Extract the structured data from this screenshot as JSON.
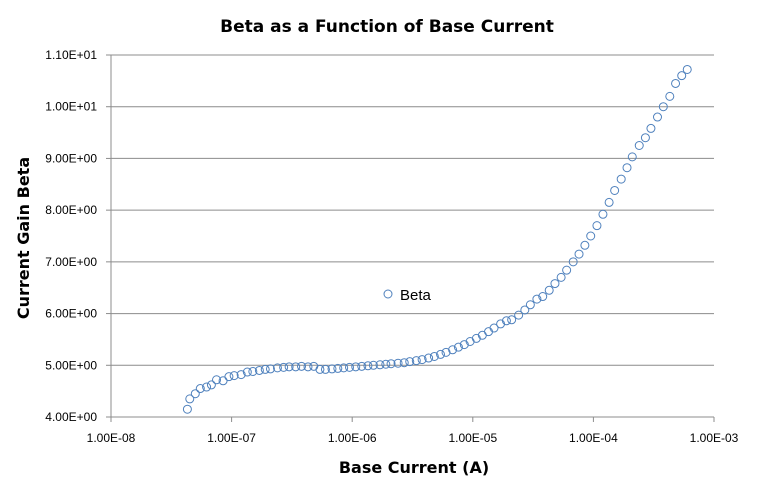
{
  "chart_data": {
    "type": "scatter",
    "title": "Beta as a Function of Base Current",
    "xlabel": "Base Current (A)",
    "ylabel": "Current Gain Beta",
    "x_scale": "log",
    "xlim": [
      1e-08,
      0.001
    ],
    "ylim": [
      4.0,
      11.0
    ],
    "x_ticks": [
      "1.00E-08",
      "1.00E-07",
      "1.00E-06",
      "1.00E-05",
      "1.00E-04",
      "1.00E-03"
    ],
    "y_ticks": [
      "4.00E+00",
      "5.00E+00",
      "6.00E+00",
      "7.00E+00",
      "8.00E+00",
      "9.00E+00",
      "1.00E+01",
      "1.10E+01"
    ],
    "grid": "horizontal major gridlines",
    "legend_position": "center-left",
    "marker_color": "#4f81bd",
    "series": [
      {
        "name": "Beta",
        "points": [
          [
            4.3e-08,
            4.15
          ],
          [
            4.5e-08,
            4.35
          ],
          [
            5e-08,
            4.45
          ],
          [
            5.5e-08,
            4.55
          ],
          [
            6.2e-08,
            4.58
          ],
          [
            6.8e-08,
            4.62
          ],
          [
            7.5e-08,
            4.72
          ],
          [
            8.5e-08,
            4.7
          ],
          [
            9.5e-08,
            4.78
          ],
          [
            1.05e-07,
            4.8
          ],
          [
            1.2e-07,
            4.82
          ],
          [
            1.35e-07,
            4.87
          ],
          [
            1.5e-07,
            4.88
          ],
          [
            1.7e-07,
            4.9
          ],
          [
            1.9e-07,
            4.92
          ],
          [
            2.1e-07,
            4.93
          ],
          [
            2.4e-07,
            4.95
          ],
          [
            2.7e-07,
            4.96
          ],
          [
            3e-07,
            4.97
          ],
          [
            3.4e-07,
            4.97
          ],
          [
            3.8e-07,
            4.98
          ],
          [
            4.3e-07,
            4.97
          ],
          [
            4.8e-07,
            4.98
          ],
          [
            5.4e-07,
            4.92
          ],
          [
            6e-07,
            4.92
          ],
          [
            6.8e-07,
            4.93
          ],
          [
            7.6e-07,
            4.94
          ],
          [
            8.5e-07,
            4.95
          ],
          [
            9.5e-07,
            4.96
          ],
          [
            1.07e-06,
            4.97
          ],
          [
            1.2e-06,
            4.98
          ],
          [
            1.35e-06,
            4.99
          ],
          [
            1.5e-06,
            5.0
          ],
          [
            1.7e-06,
            5.01
          ],
          [
            1.9e-06,
            5.02
          ],
          [
            2.1e-06,
            5.03
          ],
          [
            2.4e-06,
            5.04
          ],
          [
            2.7e-06,
            5.05
          ],
          [
            3e-06,
            5.07
          ],
          [
            3.4e-06,
            5.09
          ],
          [
            3.8e-06,
            5.11
          ],
          [
            4.3e-06,
            5.14
          ],
          [
            4.8e-06,
            5.17
          ],
          [
            5.4e-06,
            5.21
          ],
          [
            6e-06,
            5.25
          ],
          [
            6.8e-06,
            5.3
          ],
          [
            7.6e-06,
            5.35
          ],
          [
            8.5e-06,
            5.4
          ],
          [
            9.5e-06,
            5.46
          ],
          [
            1.07e-05,
            5.52
          ],
          [
            1.2e-05,
            5.58
          ],
          [
            1.35e-05,
            5.65
          ],
          [
            1.5e-05,
            5.72
          ],
          [
            1.7e-05,
            5.8
          ],
          [
            1.9e-05,
            5.86
          ],
          [
            2.1e-05,
            5.88
          ],
          [
            2.4e-05,
            5.97
          ],
          [
            2.7e-05,
            6.07
          ],
          [
            3e-05,
            6.17
          ],
          [
            3.4e-05,
            6.28
          ],
          [
            3.8e-05,
            6.33
          ],
          [
            4.3e-05,
            6.45
          ],
          [
            4.8e-05,
            6.58
          ],
          [
            5.4e-05,
            6.7
          ],
          [
            6e-05,
            6.84
          ],
          [
            6.8e-05,
            7.0
          ],
          [
            7.6e-05,
            7.15
          ],
          [
            8.5e-05,
            7.32
          ],
          [
            9.5e-05,
            7.5
          ],
          [
            0.000107,
            7.7
          ],
          [
            0.00012,
            7.92
          ],
          [
            0.000135,
            8.15
          ],
          [
            0.00015,
            8.38
          ],
          [
            0.00017,
            8.6
          ],
          [
            0.00019,
            8.82
          ],
          [
            0.00021,
            9.03
          ],
          [
            0.00024,
            9.25
          ],
          [
            0.00027,
            9.4
          ],
          [
            0.0003,
            9.58
          ],
          [
            0.00034,
            9.8
          ],
          [
            0.00038,
            10.0
          ],
          [
            0.00043,
            10.2
          ],
          [
            0.00048,
            10.45
          ],
          [
            0.00054,
            10.6
          ],
          [
            0.0006,
            10.72
          ]
        ]
      }
    ]
  }
}
